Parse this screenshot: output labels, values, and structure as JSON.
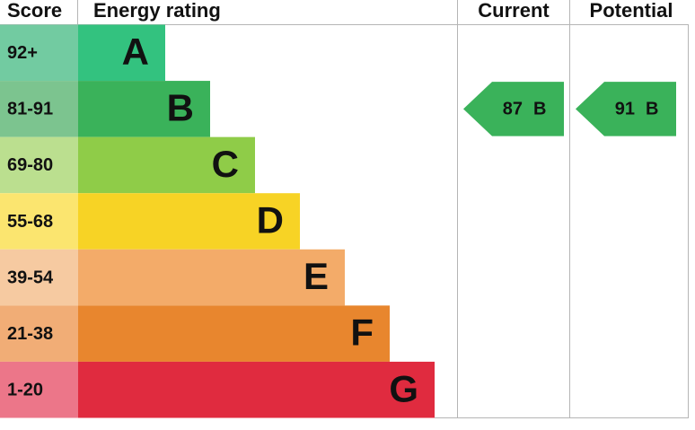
{
  "header": {
    "score": "Score",
    "rating": "Energy rating",
    "current": "Current",
    "potential": "Potential"
  },
  "bands": [
    {
      "score": "92+",
      "letter": "A",
      "bar_color": "#33c27f",
      "score_color": "#72cba1"
    },
    {
      "score": "81-91",
      "letter": "B",
      "bar_color": "#3ab25a",
      "score_color": "#7cc48f"
    },
    {
      "score": "69-80",
      "letter": "C",
      "bar_color": "#8fcc48",
      "score_color": "#bbdf8f"
    },
    {
      "score": "55-68",
      "letter": "D",
      "bar_color": "#f7d325",
      "score_color": "#fbe56f"
    },
    {
      "score": "39-54",
      "letter": "E",
      "bar_color": "#f3ab69",
      "score_color": "#f6caa1"
    },
    {
      "score": "21-38",
      "letter": "F",
      "bar_color": "#e8862e",
      "score_color": "#f1ad76"
    },
    {
      "score": "1-20",
      "letter": "G",
      "bar_color": "#e02b3f",
      "score_color": "#ec7689"
    }
  ],
  "current": {
    "value": 87,
    "letter": "B"
  },
  "potential": {
    "value": 91,
    "letter": "B"
  }
}
